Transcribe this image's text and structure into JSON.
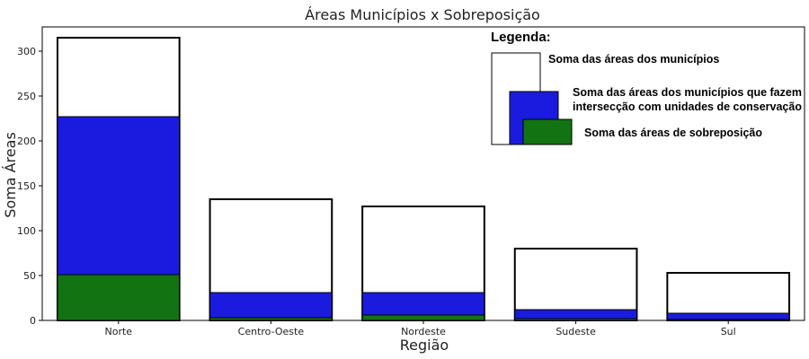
{
  "chart_data": {
    "type": "bar",
    "title": "Áreas Municípios x Sobreposição",
    "xlabel": "Região",
    "ylabel": "Soma Áreas",
    "categories": [
      "Norte",
      "Centro-Oeste",
      "Nordeste",
      "Sudeste",
      "Sul"
    ],
    "series": [
      {
        "name": "Soma das áreas dos municípios",
        "values": [
          315,
          135,
          127,
          80,
          53
        ],
        "color": "#ffffff"
      },
      {
        "name": "Soma das áreas dos municípios que fazem intersecção com unidades de conservação",
        "values": [
          227,
          31,
          31,
          12,
          8
        ],
        "color": "#1b1be0"
      },
      {
        "name": "Soma das áreas de sobreposição",
        "values": [
          51,
          3,
          6,
          2,
          1
        ],
        "color": "#127312"
      }
    ],
    "ylim": [
      0,
      327
    ],
    "yticks": [
      0,
      50,
      100,
      150,
      200,
      250,
      300
    ],
    "grid": false,
    "legend": {
      "title": "Legenda:",
      "placement": "top-right",
      "labels": [
        "Soma das áreas dos municípios",
        "Soma das áreas dos municípios que fazem",
        "intersecção com unidades de conservação",
        "Soma das áreas de sobreposição"
      ]
    }
  }
}
